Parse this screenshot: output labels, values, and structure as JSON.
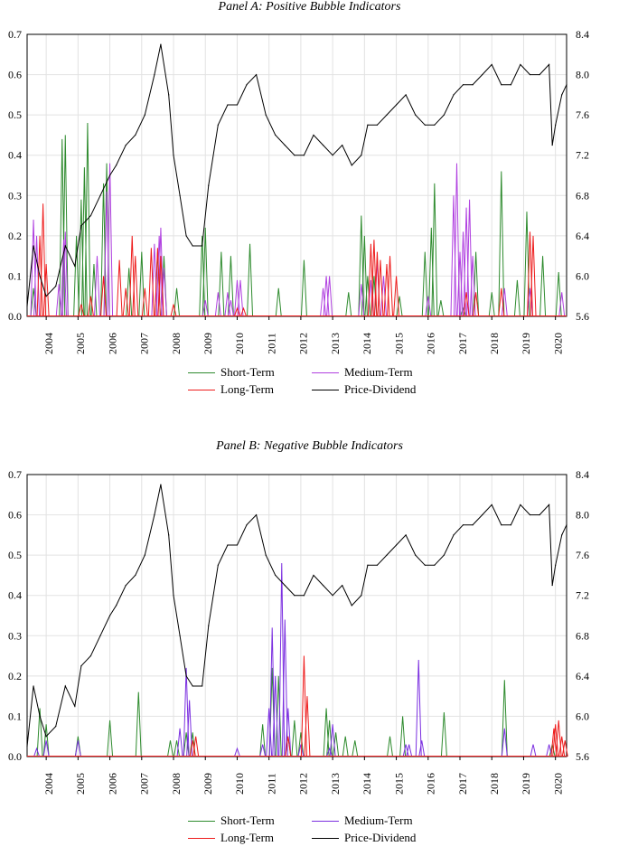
{
  "chart_data": [
    {
      "type": "line",
      "title": "Panel A: Positive Bubble Indicators",
      "x_tick_labels": [
        "2004",
        "2005",
        "2006",
        "2007",
        "2008",
        "2009",
        "2010",
        "2011",
        "2012",
        "2013",
        "2014",
        "2015",
        "2016",
        "2017",
        "2018",
        "2019",
        "2020"
      ],
      "xlim": [
        2003.4,
        2020.35
      ],
      "left_axis": {
        "ylim": [
          0,
          0.7
        ],
        "tick_labels": [
          "0.0",
          "0.1",
          "0.2",
          "0.3",
          "0.4",
          "0.5",
          "0.6",
          "0.7"
        ]
      },
      "right_axis": {
        "ylim": [
          5.6,
          8.4
        ],
        "tick_labels": [
          "5.6",
          "6.0",
          "6.4",
          "6.8",
          "7.2",
          "7.6",
          "8.0",
          "8.4"
        ]
      },
      "grid": true,
      "legend_position": "bottom-center",
      "series": [
        {
          "name": "Short-Term",
          "axis": "left",
          "color": "#2e8b2e",
          "style": "spikes",
          "x": [
            2003.6,
            2004.5,
            2004.6,
            2004.95,
            2005.1,
            2005.2,
            2005.3,
            2005.5,
            2005.8,
            2005.9,
            2006.6,
            2007.0,
            2007.5,
            2007.7,
            2008.1,
            2008.9,
            2009.0,
            2009.5,
            2009.8,
            2010.4,
            2011.3,
            2012.1,
            2013.5,
            2013.9,
            2014.0,
            2014.1,
            2014.3,
            2015.1,
            2015.9,
            2016.1,
            2016.2,
            2016.4,
            2017.1,
            2017.5,
            2018.0,
            2018.3,
            2018.8,
            2019.1,
            2019.6,
            2020.1
          ],
          "values": [
            0.07,
            0.44,
            0.45,
            0.2,
            0.29,
            0.37,
            0.48,
            0.13,
            0.33,
            0.38,
            0.12,
            0.16,
            0.16,
            0.15,
            0.07,
            0.2,
            0.22,
            0.16,
            0.15,
            0.18,
            0.07,
            0.14,
            0.06,
            0.25,
            0.2,
            0.1,
            0.1,
            0.05,
            0.16,
            0.22,
            0.33,
            0.04,
            0.02,
            0.16,
            0.06,
            0.36,
            0.09,
            0.26,
            0.15,
            0.11
          ]
        },
        {
          "name": "Medium-Term",
          "axis": "left",
          "color": "#b040e0",
          "style": "spikes",
          "x": [
            2003.6,
            2003.7,
            2004.4,
            2004.55,
            2004.6,
            2005.6,
            2005.9,
            2006.0,
            2007.4,
            2007.55,
            2007.6,
            2007.7,
            2009.0,
            2009.4,
            2009.7,
            2009.8,
            2010.0,
            2010.1,
            2012.7,
            2012.8,
            2012.9,
            2013.9,
            2014.2,
            2014.4,
            2014.6,
            2016.0,
            2016.8,
            2016.9,
            2017.0,
            2017.1,
            2017.2,
            2017.3,
            2017.4,
            2018.4,
            2019.2,
            2020.2
          ],
          "values": [
            0.24,
            0.2,
            0.08,
            0.19,
            0.21,
            0.15,
            0.31,
            0.38,
            0.18,
            0.2,
            0.22,
            0.12,
            0.04,
            0.06,
            0.06,
            0.04,
            0.09,
            0.09,
            0.07,
            0.1,
            0.1,
            0.08,
            0.09,
            0.14,
            0.1,
            0.05,
            0.3,
            0.38,
            0.16,
            0.21,
            0.27,
            0.29,
            0.15,
            0.07,
            0.07,
            0.06
          ]
        },
        {
          "name": "Long-Term",
          "axis": "left",
          "color": "#ee1c1c",
          "style": "spikes",
          "x": [
            2003.8,
            2003.9,
            2004.0,
            2005.1,
            2005.4,
            2005.8,
            2006.3,
            2006.5,
            2006.7,
            2006.8,
            2007.1,
            2007.3,
            2007.5,
            2007.6,
            2008.0,
            2010.0,
            2010.2,
            2014.2,
            2014.3,
            2014.4,
            2014.5,
            2014.7,
            2014.8,
            2015.0,
            2017.2,
            2017.5,
            2018.3,
            2019.2,
            2019.3
          ],
          "values": [
            0.2,
            0.28,
            0.13,
            0.03,
            0.05,
            0.1,
            0.14,
            0.07,
            0.2,
            0.15,
            0.07,
            0.17,
            0.17,
            0.15,
            0.03,
            0.02,
            0.02,
            0.18,
            0.19,
            0.16,
            0.14,
            0.13,
            0.15,
            0.1,
            0.06,
            0.06,
            0.07,
            0.21,
            0.2
          ]
        },
        {
          "name": "Price-Dividend",
          "axis": "right",
          "color": "#000000",
          "style": "line",
          "x": [
            2003.4,
            2003.6,
            2003.8,
            2004.0,
            2004.3,
            2004.6,
            2004.9,
            2005.1,
            2005.4,
            2005.7,
            2006.0,
            2006.2,
            2006.5,
            2006.8,
            2007.1,
            2007.4,
            2007.6,
            2007.85,
            2008.0,
            2008.2,
            2008.4,
            2008.6,
            2008.9,
            2009.1,
            2009.4,
            2009.7,
            2010.0,
            2010.3,
            2010.6,
            2010.9,
            2011.2,
            2011.5,
            2011.8,
            2012.1,
            2012.4,
            2012.7,
            2013.0,
            2013.3,
            2013.6,
            2013.9,
            2014.1,
            2014.4,
            2014.7,
            2015.0,
            2015.3,
            2015.6,
            2015.9,
            2016.2,
            2016.5,
            2016.8,
            2017.1,
            2017.4,
            2017.7,
            2018.0,
            2018.3,
            2018.6,
            2018.9,
            2019.2,
            2019.5,
            2019.8,
            2019.9,
            2020.0,
            2020.2,
            2020.35
          ],
          "values": [
            5.7,
            6.3,
            6.0,
            5.8,
            5.9,
            6.3,
            6.1,
            6.5,
            6.6,
            6.8,
            7.0,
            7.1,
            7.3,
            7.4,
            7.6,
            8.0,
            8.3,
            7.8,
            7.2,
            6.8,
            6.4,
            6.3,
            6.3,
            6.9,
            7.5,
            7.7,
            7.7,
            7.9,
            8.0,
            7.6,
            7.4,
            7.3,
            7.2,
            7.2,
            7.4,
            7.3,
            7.2,
            7.3,
            7.1,
            7.2,
            7.5,
            7.5,
            7.6,
            7.7,
            7.8,
            7.6,
            7.5,
            7.5,
            7.6,
            7.8,
            7.9,
            7.9,
            8.0,
            8.1,
            7.9,
            7.9,
            8.1,
            8.0,
            8.0,
            8.1,
            7.3,
            7.5,
            7.8,
            7.9
          ]
        }
      ]
    },
    {
      "type": "line",
      "title": "Panel B: Negative Bubble Indicators",
      "x_tick_labels": [
        "2004",
        "2005",
        "2006",
        "2007",
        "2008",
        "2009",
        "2010",
        "2011",
        "2012",
        "2013",
        "2014",
        "2015",
        "2016",
        "2017",
        "2018",
        "2019",
        "2020"
      ],
      "xlim": [
        2003.4,
        2020.35
      ],
      "left_axis": {
        "ylim": [
          0,
          0.7
        ],
        "tick_labels": [
          "0.0",
          "0.1",
          "0.2",
          "0.3",
          "0.4",
          "0.5",
          "0.6",
          "0.7"
        ]
      },
      "right_axis": {
        "ylim": [
          5.6,
          8.4
        ],
        "tick_labels": [
          "5.6",
          "6.0",
          "6.4",
          "6.8",
          "7.2",
          "7.6",
          "8.0",
          "8.4"
        ]
      },
      "grid": true,
      "legend_position": "bottom-center",
      "series": [
        {
          "name": "Short-Term",
          "axis": "left",
          "color": "#2e8b2e",
          "style": "spikes",
          "x": [
            2003.8,
            2004.0,
            2005.0,
            2006.0,
            2006.9,
            2007.9,
            2008.1,
            2008.4,
            2008.6,
            2010.8,
            2011.1,
            2011.3,
            2011.6,
            2011.8,
            2012.0,
            2012.8,
            2012.9,
            2013.1,
            2013.4,
            2013.7,
            2014.8,
            2015.2,
            2016.5,
            2018.4,
            2019.9
          ],
          "values": [
            0.12,
            0.08,
            0.05,
            0.09,
            0.16,
            0.04,
            0.04,
            0.06,
            0.06,
            0.08,
            0.22,
            0.2,
            0.05,
            0.09,
            0.06,
            0.12,
            0.09,
            0.06,
            0.05,
            0.04,
            0.05,
            0.1,
            0.11,
            0.19,
            0.03
          ]
        },
        {
          "name": "Medium-Term",
          "axis": "left",
          "color": "#7b2fe0",
          "style": "spikes",
          "x": [
            2003.7,
            2004.0,
            2005.0,
            2008.2,
            2008.4,
            2008.5,
            2010.0,
            2010.8,
            2011.0,
            2011.1,
            2011.2,
            2011.4,
            2011.5,
            2011.6,
            2012.0,
            2012.9,
            2013.0,
            2015.3,
            2015.4,
            2015.7,
            2015.8,
            2018.4,
            2019.3,
            2019.8
          ],
          "values": [
            0.02,
            0.04,
            0.04,
            0.07,
            0.22,
            0.14,
            0.02,
            0.03,
            0.12,
            0.32,
            0.2,
            0.48,
            0.34,
            0.12,
            0.03,
            0.02,
            0.08,
            0.03,
            0.03,
            0.24,
            0.04,
            0.07,
            0.03,
            0.03
          ]
        },
        {
          "name": "Long-Term",
          "axis": "left",
          "color": "#ee1c1c",
          "style": "spikes",
          "x": [
            2008.6,
            2008.7,
            2011.6,
            2012.1,
            2012.2,
            2019.95,
            2020.0,
            2020.1,
            2020.2,
            2020.3
          ],
          "values": [
            0.04,
            0.05,
            0.05,
            0.25,
            0.15,
            0.07,
            0.08,
            0.09,
            0.05,
            0.04
          ]
        },
        {
          "name": "Price-Dividend",
          "axis": "right",
          "color": "#000000",
          "style": "line",
          "x": [
            2003.4,
            2003.6,
            2003.8,
            2004.0,
            2004.3,
            2004.6,
            2004.9,
            2005.1,
            2005.4,
            2005.7,
            2006.0,
            2006.2,
            2006.5,
            2006.8,
            2007.1,
            2007.4,
            2007.6,
            2007.85,
            2008.0,
            2008.2,
            2008.4,
            2008.6,
            2008.9,
            2009.1,
            2009.4,
            2009.7,
            2010.0,
            2010.3,
            2010.6,
            2010.9,
            2011.2,
            2011.5,
            2011.8,
            2012.1,
            2012.4,
            2012.7,
            2013.0,
            2013.3,
            2013.6,
            2013.9,
            2014.1,
            2014.4,
            2014.7,
            2015.0,
            2015.3,
            2015.6,
            2015.9,
            2016.2,
            2016.5,
            2016.8,
            2017.1,
            2017.4,
            2017.7,
            2018.0,
            2018.3,
            2018.6,
            2018.9,
            2019.2,
            2019.5,
            2019.8,
            2019.9,
            2020.0,
            2020.2,
            2020.35
          ],
          "values": [
            5.7,
            6.3,
            6.0,
            5.8,
            5.9,
            6.3,
            6.1,
            6.5,
            6.6,
            6.8,
            7.0,
            7.1,
            7.3,
            7.4,
            7.6,
            8.0,
            8.3,
            7.8,
            7.2,
            6.8,
            6.4,
            6.3,
            6.3,
            6.9,
            7.5,
            7.7,
            7.7,
            7.9,
            8.0,
            7.6,
            7.4,
            7.3,
            7.2,
            7.2,
            7.4,
            7.3,
            7.2,
            7.3,
            7.1,
            7.2,
            7.5,
            7.5,
            7.6,
            7.7,
            7.8,
            7.6,
            7.5,
            7.5,
            7.6,
            7.8,
            7.9,
            7.9,
            8.0,
            8.1,
            7.9,
            7.9,
            8.1,
            8.0,
            8.0,
            8.1,
            7.3,
            7.5,
            7.8,
            7.9
          ]
        }
      ]
    }
  ],
  "legends": [
    {
      "items": [
        "Short-Term",
        "Medium-Term",
        "Long-Term",
        "Price-Dividend"
      ]
    },
    {
      "items": [
        "Short-Term",
        "Medium-Term",
        "Long-Term",
        "Price-Dividend"
      ]
    }
  ]
}
